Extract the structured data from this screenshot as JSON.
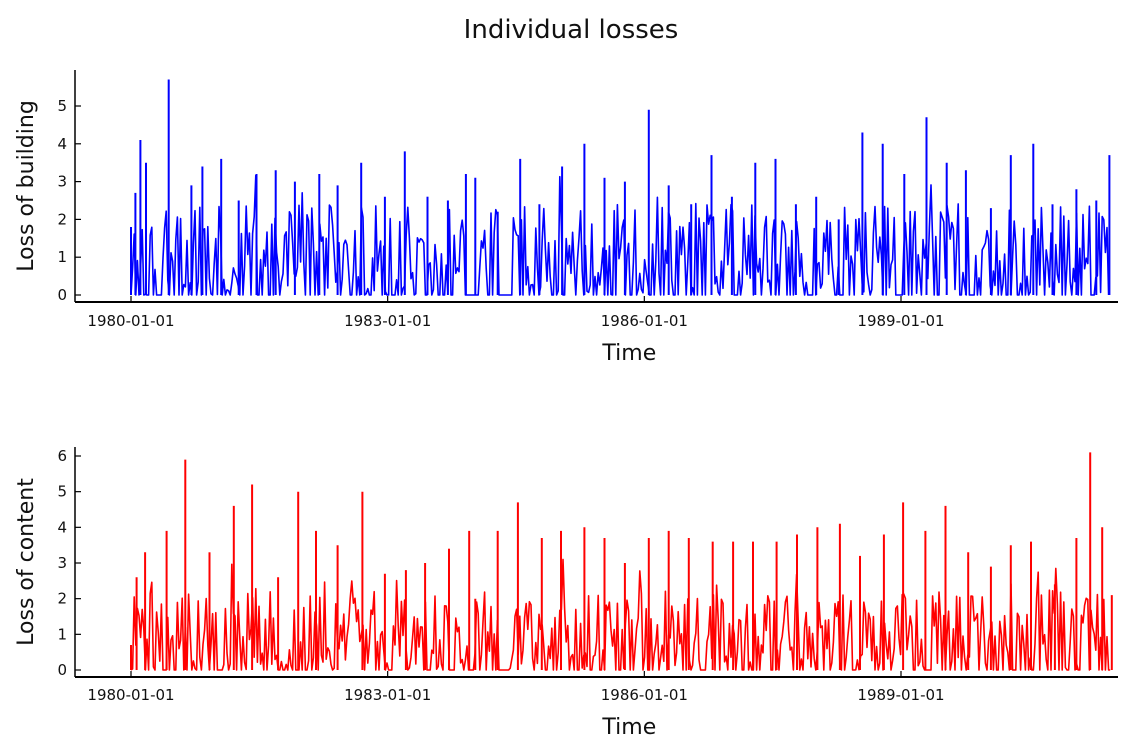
{
  "figure": {
    "title": "Individual losses"
  },
  "colors": {
    "building": "#0000ff",
    "content": "#ff0000",
    "axis": "#000000"
  },
  "chart_data": [
    {
      "type": "line",
      "ylabel": "Loss of building",
      "xlabel": "Time",
      "x_range": [
        "1980-01-01",
        "1991-07-01"
      ],
      "ylim": [
        0,
        5.8
      ],
      "x_ticks": [
        "1980-01-01",
        "1983-01-01",
        "1986-01-01",
        "1989-01-01"
      ],
      "y_ticks": [
        0,
        1,
        2,
        3,
        4,
        5
      ],
      "grid": false,
      "series": [
        {
          "color": "#0000ff",
          "x": [
            "1980-01-01",
            "1980-01-20",
            "1980-02-10",
            "1980-03-05",
            "1980-06-10",
            "1980-09-15",
            "1980-11-01",
            "1981-01-20",
            "1981-04-05",
            "1981-06-20",
            "1981-09-10",
            "1981-12-01",
            "1982-03-15",
            "1982-06-01",
            "1982-09-10",
            "1982-12-20",
            "1983-03-15",
            "1983-06-20",
            "1983-09-15",
            "1983-12-01",
            "1984-01-10",
            "1984-04-15",
            "1984-07-20",
            "1984-10-10",
            "1985-01-15",
            "1985-04-20",
            "1985-07-15",
            "1985-10-10",
            "1986-01-20",
            "1986-04-15",
            "1986-07-20",
            "1986-10-15",
            "1987-01-10",
            "1987-04-20",
            "1987-07-15",
            "1987-10-10",
            "1988-01-05",
            "1988-04-10",
            "1988-07-20",
            "1988-10-15",
            "1989-01-15",
            "1989-04-20",
            "1989-07-15",
            "1989-10-05",
            "1990-01-20",
            "1990-04-15",
            "1990-07-20",
            "1990-10-10",
            "1991-01-20",
            "1991-04-15",
            "1991-06-10"
          ],
          "values": [
            1.8,
            2.7,
            4.1,
            3.5,
            5.7,
            2.9,
            3.4,
            3.6,
            2.5,
            3.2,
            3.3,
            3.0,
            3.2,
            2.9,
            3.5,
            2.6,
            3.8,
            2.6,
            2.5,
            3.2,
            3.1,
            2.2,
            3.6,
            2.4,
            3.4,
            4.0,
            3.1,
            3.0,
            4.9,
            2.9,
            2.4,
            3.7,
            2.6,
            3.5,
            3.6,
            2.4,
            2.6,
            2.0,
            4.3,
            4.0,
            3.2,
            4.7,
            3.5,
            3.3,
            2.3,
            3.7,
            4.0,
            2.4,
            2.8,
            2.5,
            3.7
          ]
        }
      ]
    },
    {
      "type": "line",
      "ylabel": "Loss of content",
      "xlabel": "Time",
      "x_range": [
        "1980-01-01",
        "1991-07-01"
      ],
      "ylim": [
        0,
        6.3
      ],
      "x_ticks": [
        "1980-01-01",
        "1983-01-01",
        "1986-01-01",
        "1989-01-01"
      ],
      "y_ticks": [
        0,
        1,
        2,
        3,
        4,
        5,
        6
      ],
      "grid": false,
      "series": [
        {
          "color": "#ff0000",
          "x": [
            "1980-01-01",
            "1980-01-25",
            "1980-03-01",
            "1980-06-01",
            "1980-08-20",
            "1980-12-01",
            "1981-03-15",
            "1981-06-01",
            "1981-09-20",
            "1981-12-15",
            "1982-03-01",
            "1982-06-01",
            "1982-09-15",
            "1982-12-20",
            "1983-03-20",
            "1983-06-10",
            "1983-09-20",
            "1983-12-15",
            "1984-01-10",
            "1984-04-15",
            "1984-07-10",
            "1984-10-20",
            "1985-01-10",
            "1985-04-20",
            "1985-07-15",
            "1985-10-10",
            "1986-01-20",
            "1986-04-15",
            "1986-07-10",
            "1986-10-20",
            "1987-01-15",
            "1987-04-10",
            "1987-07-20",
            "1987-10-15",
            "1988-01-10",
            "1988-04-15",
            "1988-07-10",
            "1988-10-20",
            "1989-01-10",
            "1989-04-15",
            "1989-07-10",
            "1989-10-15",
            "1990-01-20",
            "1990-04-15",
            "1990-07-10",
            "1990-10-20",
            "1991-01-20",
            "1991-03-20",
            "1991-05-10",
            "1991-06-20"
          ],
          "values": [
            0.7,
            2.6,
            3.3,
            3.9,
            5.9,
            3.3,
            4.6,
            5.2,
            2.6,
            5.0,
            3.9,
            3.5,
            5.0,
            2.7,
            2.8,
            3.0,
            3.4,
            3.9,
            2.0,
            3.9,
            4.7,
            3.7,
            3.9,
            4.0,
            3.7,
            3.0,
            3.7,
            3.9,
            3.7,
            3.6,
            3.6,
            3.6,
            3.6,
            3.8,
            4.0,
            4.1,
            3.2,
            3.8,
            4.7,
            3.9,
            4.6,
            3.3,
            2.9,
            3.5,
            3.6,
            2.4,
            3.7,
            6.1,
            4.0,
            2.1
          ]
        }
      ]
    }
  ]
}
